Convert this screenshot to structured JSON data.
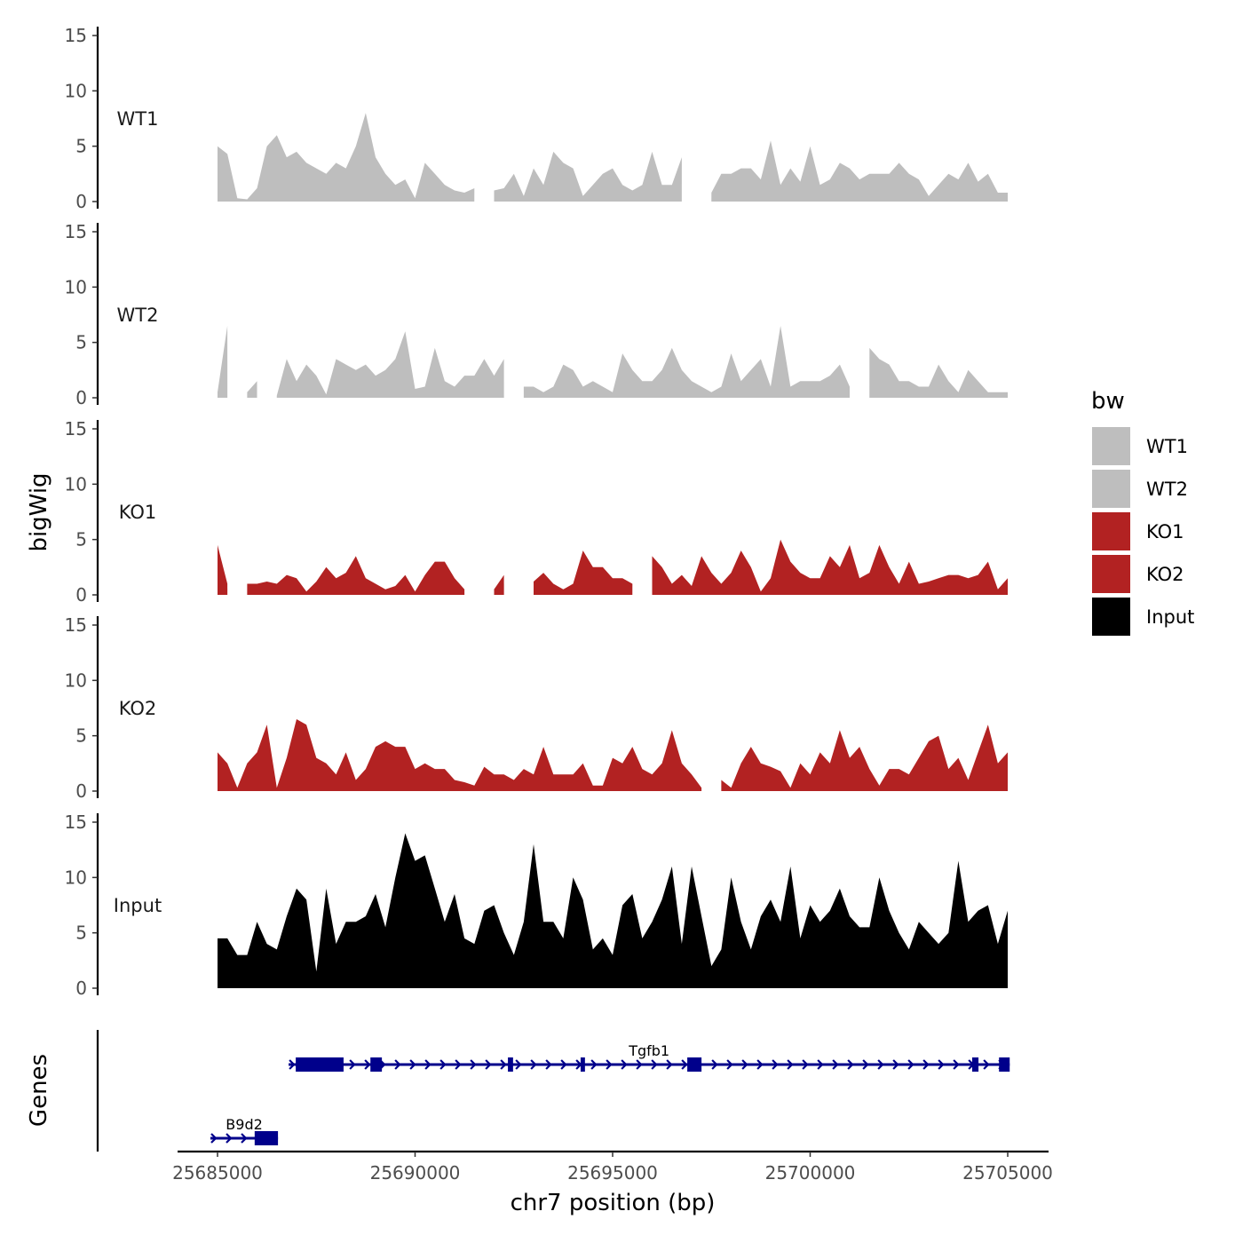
{
  "chart_data": {
    "type": "area",
    "xlabel": "chr7 position (bp)",
    "ylabel": "bigWig",
    "genes_label": "Genes",
    "xlim": [
      25685000,
      25705000
    ],
    "xticks": [
      25685000,
      25690000,
      25695000,
      25700000,
      25705000
    ],
    "xtick_labels": [
      "25685000",
      "25690000",
      "25695000",
      "25700000",
      "25705000"
    ],
    "ylim": [
      0,
      15
    ],
    "yticks": [
      0,
      5,
      10,
      15
    ],
    "ytick_labels": [
      "0",
      "5",
      "10",
      "15"
    ],
    "x_start": 25685000,
    "x_step": 250,
    "legend": {
      "title": "bw",
      "position": "right"
    },
    "series": [
      {
        "name": "WT1",
        "color": "#BEBEBE",
        "values": [
          5,
          4.3,
          0.3,
          0.2,
          1.2,
          5,
          6,
          4,
          4.5,
          3.5,
          3,
          2.5,
          3.5,
          3,
          5,
          8,
          4,
          2.5,
          1.5,
          2,
          0.3,
          3.5,
          2.5,
          1.5,
          1,
          0.8,
          1.2,
          null,
          1,
          1.2,
          2.5,
          0.5,
          3,
          1.5,
          4.5,
          3.5,
          3,
          0.5,
          1.5,
          2.5,
          3,
          1.5,
          1,
          1.5,
          4.5,
          1.5,
          1.5,
          4,
          null,
          null,
          0.8,
          2.5,
          2.5,
          3,
          3,
          2,
          5.5,
          1.5,
          3,
          1.8,
          5,
          1.5,
          2,
          3.5,
          3,
          2,
          2.5,
          2.5,
          2.5,
          3.5,
          2.5,
          2,
          0.5,
          1.5,
          2.5,
          2,
          3.5,
          1.8,
          2.5,
          0.8,
          0.8
        ]
      },
      {
        "name": "WT2",
        "color": "#BEBEBE",
        "values": [
          0.5,
          6.5,
          null,
          0.5,
          1.5,
          null,
          0.2,
          3.5,
          1.5,
          3,
          2,
          0.3,
          3.5,
          3,
          2.5,
          3,
          2,
          2.5,
          3.5,
          6,
          0.8,
          1,
          4.5,
          1.5,
          1,
          2,
          2,
          3.5,
          2,
          3.5,
          null,
          1,
          1,
          0.5,
          1,
          3,
          2.5,
          1,
          1.5,
          1,
          0.5,
          4,
          2.5,
          1.5,
          1.5,
          2.5,
          4.5,
          2.5,
          1.5,
          1,
          0.5,
          1,
          4,
          1.5,
          2.5,
          3.5,
          1,
          6.5,
          1,
          1.5,
          1.5,
          1.5,
          2,
          3,
          1,
          null,
          4.5,
          3.5,
          3,
          1.5,
          1.5,
          1,
          1,
          3,
          1.5,
          0.5,
          2.5,
          1.5,
          0.5,
          0.5,
          0.5
        ]
      },
      {
        "name": "KO1",
        "color": "#B22222",
        "values": [
          4.5,
          1,
          null,
          1,
          1,
          1.2,
          1,
          1.8,
          1.5,
          0.3,
          1.2,
          2.5,
          1.5,
          2,
          3.5,
          1.5,
          1,
          0.5,
          0.8,
          1.8,
          0.3,
          1.8,
          3,
          3,
          1.5,
          0.5,
          null,
          null,
          0.5,
          1.8,
          null,
          null,
          1.2,
          2,
          1,
          0.5,
          1,
          4,
          2.5,
          2.5,
          1.5,
          1.5,
          1,
          null,
          3.5,
          2.5,
          1,
          1.8,
          0.8,
          3.5,
          2,
          1,
          2,
          4,
          2.5,
          0.3,
          1.5,
          5,
          3,
          2,
          1.5,
          1.5,
          3.5,
          2.5,
          4.5,
          1.5,
          2,
          4.5,
          2.5,
          1,
          3,
          1,
          1.2,
          1.5,
          1.8,
          1.8,
          1.5,
          1.8,
          3,
          0.5,
          1.5
        ]
      },
      {
        "name": "KO2",
        "color": "#B22222",
        "values": [
          3.5,
          2.5,
          0.3,
          2.5,
          3.5,
          6,
          0.3,
          3,
          6.5,
          6,
          3,
          2.5,
          1.5,
          3.5,
          1,
          2,
          4,
          4.5,
          4,
          4,
          2,
          2.5,
          2,
          2,
          1,
          0.8,
          0.5,
          2.2,
          1.5,
          1.5,
          1,
          2,
          1.5,
          4,
          1.5,
          1.5,
          1.5,
          2.5,
          0.5,
          0.5,
          3,
          2.5,
          4,
          2,
          1.5,
          2.5,
          5.5,
          2.5,
          1.5,
          0.3,
          null,
          1,
          0.3,
          2.5,
          4,
          2.5,
          2.2,
          1.8,
          0.3,
          2.5,
          1.5,
          3.5,
          2.5,
          5.5,
          3,
          4,
          2,
          0.5,
          2,
          2,
          1.5,
          3,
          4.5,
          5,
          2,
          3,
          1,
          3.5,
          6,
          2.5,
          3.5
        ]
      },
      {
        "name": "Input",
        "color": "#000000",
        "values": [
          4.5,
          4.5,
          3,
          3,
          6,
          4,
          3.5,
          6.5,
          9,
          8,
          1.5,
          9,
          4,
          6,
          6,
          6.5,
          8.5,
          5.5,
          10,
          14,
          11.5,
          12,
          9,
          6,
          8.5,
          4.5,
          4,
          7,
          7.5,
          5,
          3,
          6,
          13,
          6,
          6,
          4.5,
          10,
          8,
          3.5,
          4.5,
          3,
          7.5,
          8.5,
          4.5,
          6,
          8,
          11,
          4,
          11,
          6.5,
          2,
          3.5,
          10,
          6,
          3.5,
          6.5,
          8,
          6,
          11,
          4.5,
          7.5,
          6,
          7,
          9,
          6.5,
          5.5,
          5.5,
          10,
          7,
          5,
          3.5,
          6,
          5,
          4,
          5,
          11.5,
          6,
          7,
          7.5,
          4,
          7
        ]
      }
    ],
    "genes": [
      {
        "name": "Tgfb1",
        "strand": "+",
        "start": 25686800,
        "end": 25705050,
        "color": "#00008B",
        "exons": [
          [
            25686980,
            25688190
          ],
          [
            25688870,
            25689160
          ],
          [
            25692350,
            25692480
          ],
          [
            25694190,
            25694300
          ],
          [
            25696890,
            25697250
          ],
          [
            25704100,
            25704260
          ],
          [
            25704780,
            25705050
          ]
        ]
      },
      {
        "name": "B9d2",
        "strand": "+",
        "start": 25684820,
        "end": 25686530,
        "color": "#00008B",
        "exons": [
          [
            25685940,
            25686530
          ]
        ]
      }
    ]
  }
}
